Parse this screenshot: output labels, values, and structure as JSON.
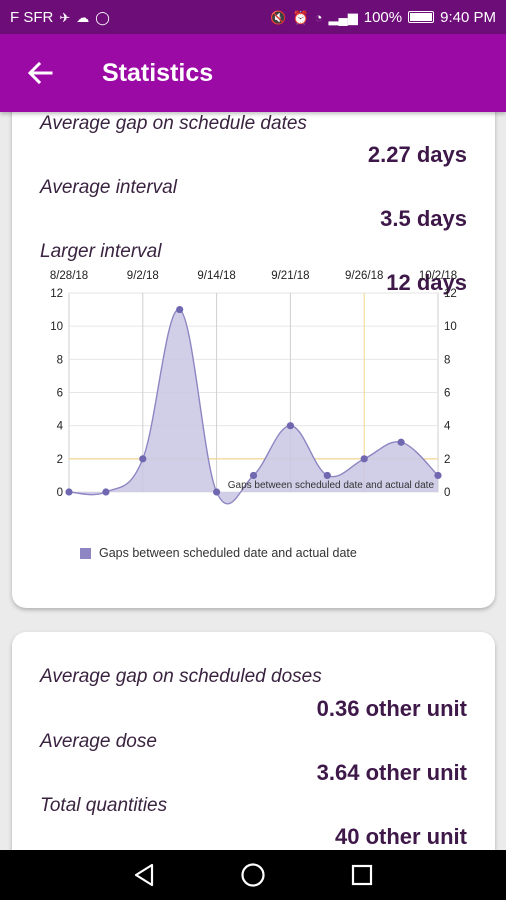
{
  "status_bar": {
    "carrier": "F SFR",
    "battery": "100%",
    "time": "9:40 PM"
  },
  "app_bar": {
    "title": "Statistics"
  },
  "card1": {
    "stats": [
      {
        "label": "Average gap on schedule dates",
        "value": "2.27 days"
      },
      {
        "label": "Average interval",
        "value": "3.5 days"
      },
      {
        "label": "Larger interval",
        "value": "12 days"
      }
    ]
  },
  "chart_data": {
    "type": "area",
    "x_tick_labels": [
      "8/28/18",
      "9/2/18",
      "9/14/18",
      "9/21/18",
      "9/26/18",
      "10/2/18"
    ],
    "y_ticks": [
      0,
      2,
      4,
      6,
      8,
      10,
      12
    ],
    "ylim": [
      0,
      12
    ],
    "series": [
      {
        "name": "Gaps between scheduled date and actual date",
        "values": [
          0,
          0,
          2,
          11,
          0,
          1,
          4,
          1,
          2,
          3,
          1
        ]
      }
    ],
    "inline_label": "Gaps between scheduled date and actual date",
    "legend": "bottom",
    "colors": {
      "fill": "#c9c6e4",
      "line": "#8e86c2",
      "point": "#6f68b0",
      "limit_line": "#f2d58a",
      "grid": "#cfcfcf"
    }
  },
  "card2": {
    "stats": [
      {
        "label": "Average gap on scheduled doses",
        "value": "0.36 other unit"
      },
      {
        "label": "Average dose",
        "value": "3.64 other unit"
      },
      {
        "label": "Total quantities",
        "value": "40 other unit"
      }
    ]
  },
  "nav_bar": {
    "back": "back-icon",
    "home": "home-icon",
    "recents": "recents-icon"
  }
}
